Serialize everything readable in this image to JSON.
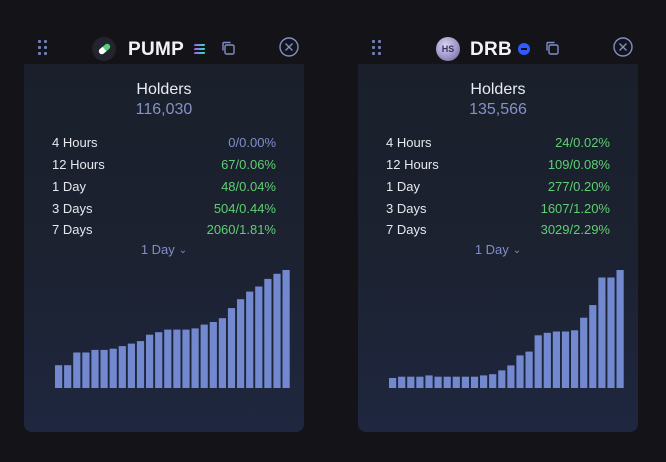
{
  "panels": [
    {
      "ticker": "PUMP",
      "logo_icon": "pill-logo-icon",
      "chain_icon": "solana-chain-icon",
      "holders_title": "Holders",
      "holders_count": "116,030",
      "stats": [
        {
          "label": "4 Hours",
          "value": "0/0.00%",
          "tone": "neutral"
        },
        {
          "label": "12 Hours",
          "value": "67/0.06%",
          "tone": "positive"
        },
        {
          "label": "1 Day",
          "value": "48/0.04%",
          "tone": "positive"
        },
        {
          "label": "3 Days",
          "value": "504/0.44%",
          "tone": "positive"
        },
        {
          "label": "7 Days",
          "value": "2060/1.81%",
          "tone": "positive"
        }
      ],
      "period_selector": "1 Day",
      "chart_values": [
        18,
        18,
        28,
        28,
        30,
        30,
        31,
        33,
        35,
        37,
        42,
        44,
        46,
        46,
        46,
        47,
        50,
        52,
        55,
        63,
        70,
        76,
        80,
        86,
        90,
        93
      ]
    },
    {
      "ticker": "DRB",
      "logo_text": "HS",
      "logo_icon": "hs-avatar-icon",
      "chain_icon": "base-chain-icon",
      "holders_title": "Holders",
      "holders_count": "135,566",
      "stats": [
        {
          "label": "4 Hours",
          "value": "24/0.02%",
          "tone": "positive"
        },
        {
          "label": "12 Hours",
          "value": "109/0.08%",
          "tone": "positive"
        },
        {
          "label": "1 Day",
          "value": "277/0.20%",
          "tone": "positive"
        },
        {
          "label": "3 Days",
          "value": "1607/1.20%",
          "tone": "positive"
        },
        {
          "label": "7 Days",
          "value": "3029/2.29%",
          "tone": "positive"
        }
      ],
      "period_selector": "1 Day",
      "chart_values": [
        8,
        9,
        9,
        9,
        10,
        9,
        9,
        9,
        9,
        9,
        10,
        11,
        14,
        18,
        26,
        29,
        42,
        44,
        45,
        45,
        46,
        56,
        66,
        88,
        88,
        94
      ]
    }
  ],
  "colors": {
    "positive": "#5fcf73",
    "neutral": "#7f8fca",
    "bar": "#7289cf",
    "background": "#141418"
  }
}
